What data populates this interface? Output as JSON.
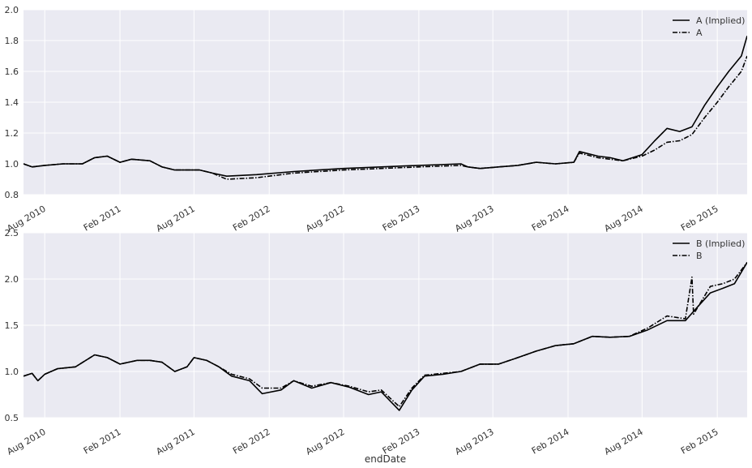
{
  "chart_data": [
    {
      "type": "line",
      "panel": "top",
      "xlim": [
        "2010-06-10",
        "2015-04-15"
      ],
      "ylim": [
        0.8,
        2.0
      ],
      "y_ticks": [
        "0.8",
        "1.0",
        "1.2",
        "1.4",
        "1.6",
        "1.8",
        "2.0"
      ],
      "x_ticks": [
        "Aug 2010",
        "Feb 2011",
        "Aug 2011",
        "Feb 2012",
        "Aug 2012",
        "Feb 2013",
        "Aug 2013",
        "Feb 2014",
        "Aug 2014",
        "Feb 2015"
      ],
      "grid": true,
      "legend_position": "top-right",
      "series": [
        {
          "name": "A (Implied)",
          "style": "solid",
          "color": "#000000",
          "points": [
            [
              "2010-06-10",
              1.0
            ],
            [
              "2010-07-01",
              0.98
            ],
            [
              "2010-08-01",
              0.99
            ],
            [
              "2010-09-15",
              1.0
            ],
            [
              "2010-11-01",
              1.0
            ],
            [
              "2010-12-01",
              1.04
            ],
            [
              "2011-01-01",
              1.05
            ],
            [
              "2011-02-01",
              1.01
            ],
            [
              "2011-03-01",
              1.03
            ],
            [
              "2011-04-15",
              1.02
            ],
            [
              "2011-05-15",
              0.98
            ],
            [
              "2011-06-15",
              0.96
            ],
            [
              "2011-08-15",
              0.96
            ],
            [
              "2011-09-15",
              0.94
            ],
            [
              "2011-10-20",
              0.92
            ],
            [
              "2012-01-01",
              0.93
            ],
            [
              "2012-04-01",
              0.95
            ],
            [
              "2012-08-01",
              0.97
            ],
            [
              "2012-11-01",
              0.98
            ],
            [
              "2013-02-01",
              0.99
            ],
            [
              "2013-05-15",
              1.0
            ],
            [
              "2013-06-01",
              0.98
            ],
            [
              "2013-07-01",
              0.97
            ],
            [
              "2013-08-15",
              0.98
            ],
            [
              "2013-10-01",
              0.99
            ],
            [
              "2013-11-15",
              1.01
            ],
            [
              "2014-01-01",
              1.0
            ],
            [
              "2014-02-15",
              1.01
            ],
            [
              "2014-03-01",
              1.08
            ],
            [
              "2014-04-15",
              1.05
            ],
            [
              "2014-05-15",
              1.04
            ],
            [
              "2014-06-15",
              1.02
            ],
            [
              "2014-08-01",
              1.06
            ],
            [
              "2014-09-01",
              1.15
            ],
            [
              "2014-10-01",
              1.23
            ],
            [
              "2014-11-01",
              1.21
            ],
            [
              "2014-12-01",
              1.24
            ],
            [
              "2015-01-01",
              1.38
            ],
            [
              "2015-02-01",
              1.5
            ],
            [
              "2015-03-01",
              1.6
            ],
            [
              "2015-04-01",
              1.7
            ],
            [
              "2015-04-15",
              1.83
            ]
          ]
        },
        {
          "name": "A",
          "style": "dashdot",
          "color": "#000000",
          "points": [
            [
              "2010-06-10",
              1.0
            ],
            [
              "2010-07-01",
              0.98
            ],
            [
              "2010-08-01",
              0.99
            ],
            [
              "2010-09-15",
              1.0
            ],
            [
              "2010-11-01",
              1.0
            ],
            [
              "2010-12-01",
              1.04
            ],
            [
              "2011-01-01",
              1.05
            ],
            [
              "2011-02-01",
              1.01
            ],
            [
              "2011-03-01",
              1.03
            ],
            [
              "2011-04-15",
              1.02
            ],
            [
              "2011-05-15",
              0.98
            ],
            [
              "2011-06-15",
              0.96
            ],
            [
              "2011-08-15",
              0.96
            ],
            [
              "2011-09-15",
              0.94
            ],
            [
              "2011-10-20",
              0.9
            ],
            [
              "2012-01-01",
              0.91
            ],
            [
              "2012-04-01",
              0.94
            ],
            [
              "2012-08-01",
              0.96
            ],
            [
              "2012-11-01",
              0.97
            ],
            [
              "2013-02-01",
              0.98
            ],
            [
              "2013-05-15",
              0.99
            ],
            [
              "2013-06-01",
              0.98
            ],
            [
              "2013-07-01",
              0.97
            ],
            [
              "2013-08-15",
              0.98
            ],
            [
              "2013-10-01",
              0.99
            ],
            [
              "2013-11-15",
              1.01
            ],
            [
              "2014-01-01",
              1.0
            ],
            [
              "2014-02-15",
              1.01
            ],
            [
              "2014-03-01",
              1.07
            ],
            [
              "2014-04-15",
              1.04
            ],
            [
              "2014-05-15",
              1.03
            ],
            [
              "2014-06-15",
              1.02
            ],
            [
              "2014-08-01",
              1.05
            ],
            [
              "2014-09-01",
              1.09
            ],
            [
              "2014-10-01",
              1.14
            ],
            [
              "2014-11-01",
              1.15
            ],
            [
              "2014-12-01",
              1.19
            ],
            [
              "2015-01-01",
              1.3
            ],
            [
              "2015-02-01",
              1.4
            ],
            [
              "2015-03-01",
              1.5
            ],
            [
              "2015-04-01",
              1.6
            ],
            [
              "2015-04-15",
              1.7
            ]
          ]
        }
      ]
    },
    {
      "type": "line",
      "panel": "bottom",
      "xlabel": "endDate",
      "xlim": [
        "2010-06-10",
        "2015-04-15"
      ],
      "ylim": [
        0.5,
        2.5
      ],
      "y_ticks": [
        "0.5",
        "1.0",
        "1.5",
        "2.0",
        "2.5"
      ],
      "x_ticks": [
        "Aug 2010",
        "Feb 2011",
        "Aug 2011",
        "Feb 2012",
        "Aug 2012",
        "Feb 2013",
        "Aug 2013",
        "Feb 2014",
        "Aug 2014",
        "Feb 2015"
      ],
      "grid": true,
      "legend_position": "top-right",
      "series": [
        {
          "name": "B (Implied)",
          "style": "solid",
          "color": "#000000",
          "points": [
            [
              "2010-06-10",
              0.95
            ],
            [
              "2010-07-01",
              0.98
            ],
            [
              "2010-07-15",
              0.9
            ],
            [
              "2010-08-01",
              0.97
            ],
            [
              "2010-09-01",
              1.03
            ],
            [
              "2010-10-15",
              1.05
            ],
            [
              "2010-12-01",
              1.18
            ],
            [
              "2011-01-01",
              1.15
            ],
            [
              "2011-02-01",
              1.08
            ],
            [
              "2011-03-15",
              1.12
            ],
            [
              "2011-04-15",
              1.12
            ],
            [
              "2011-05-15",
              1.1
            ],
            [
              "2011-06-15",
              1.0
            ],
            [
              "2011-07-15",
              1.05
            ],
            [
              "2011-08-01",
              1.15
            ],
            [
              "2011-09-01",
              1.12
            ],
            [
              "2011-10-01",
              1.05
            ],
            [
              "2011-11-01",
              0.95
            ],
            [
              "2011-12-15",
              0.9
            ],
            [
              "2012-01-15",
              0.76
            ],
            [
              "2012-03-01",
              0.8
            ],
            [
              "2012-04-01",
              0.9
            ],
            [
              "2012-05-15",
              0.82
            ],
            [
              "2012-07-01",
              0.88
            ],
            [
              "2012-08-15",
              0.83
            ],
            [
              "2012-10-01",
              0.75
            ],
            [
              "2012-11-01",
              0.78
            ],
            [
              "2012-12-15",
              0.58
            ],
            [
              "2013-01-15",
              0.8
            ],
            [
              "2013-02-15",
              0.95
            ],
            [
              "2013-04-01",
              0.97
            ],
            [
              "2013-05-15",
              1.0
            ],
            [
              "2013-07-01",
              1.08
            ],
            [
              "2013-08-15",
              1.08
            ],
            [
              "2013-10-01",
              1.15
            ],
            [
              "2013-11-15",
              1.22
            ],
            [
              "2014-01-01",
              1.28
            ],
            [
              "2014-02-15",
              1.3
            ],
            [
              "2014-04-01",
              1.38
            ],
            [
              "2014-05-15",
              1.37
            ],
            [
              "2014-07-01",
              1.38
            ],
            [
              "2014-08-15",
              1.45
            ],
            [
              "2014-10-01",
              1.55
            ],
            [
              "2014-11-15",
              1.55
            ],
            [
              "2014-12-15",
              1.7
            ],
            [
              "2015-01-15",
              1.85
            ],
            [
              "2015-02-15",
              1.9
            ],
            [
              "2015-03-15",
              1.95
            ],
            [
              "2015-04-15",
              2.18
            ]
          ]
        },
        {
          "name": "B",
          "style": "dashdot",
          "color": "#000000",
          "points": [
            [
              "2010-06-10",
              0.95
            ],
            [
              "2010-07-01",
              0.98
            ],
            [
              "2010-07-15",
              0.9
            ],
            [
              "2010-08-01",
              0.97
            ],
            [
              "2010-09-01",
              1.03
            ],
            [
              "2010-10-15",
              1.05
            ],
            [
              "2010-12-01",
              1.18
            ],
            [
              "2011-01-01",
              1.15
            ],
            [
              "2011-02-01",
              1.08
            ],
            [
              "2011-03-15",
              1.12
            ],
            [
              "2011-04-15",
              1.12
            ],
            [
              "2011-05-15",
              1.1
            ],
            [
              "2011-06-15",
              1.0
            ],
            [
              "2011-07-15",
              1.05
            ],
            [
              "2011-08-01",
              1.15
            ],
            [
              "2011-09-01",
              1.12
            ],
            [
              "2011-10-01",
              1.05
            ],
            [
              "2011-11-01",
              0.97
            ],
            [
              "2011-12-15",
              0.92
            ],
            [
              "2012-01-15",
              0.82
            ],
            [
              "2012-03-01",
              0.82
            ],
            [
              "2012-04-01",
              0.9
            ],
            [
              "2012-05-15",
              0.84
            ],
            [
              "2012-07-01",
              0.88
            ],
            [
              "2012-08-15",
              0.84
            ],
            [
              "2012-10-01",
              0.78
            ],
            [
              "2012-11-01",
              0.8
            ],
            [
              "2012-12-15",
              0.62
            ],
            [
              "2013-01-15",
              0.82
            ],
            [
              "2013-02-15",
              0.96
            ],
            [
              "2013-04-01",
              0.98
            ],
            [
              "2013-05-15",
              1.0
            ],
            [
              "2013-07-01",
              1.08
            ],
            [
              "2013-08-15",
              1.08
            ],
            [
              "2013-10-01",
              1.15
            ],
            [
              "2013-11-15",
              1.22
            ],
            [
              "2014-01-01",
              1.28
            ],
            [
              "2014-02-15",
              1.3
            ],
            [
              "2014-04-01",
              1.38
            ],
            [
              "2014-05-15",
              1.37
            ],
            [
              "2014-07-01",
              1.38
            ],
            [
              "2014-08-15",
              1.47
            ],
            [
              "2014-10-01",
              1.6
            ],
            [
              "2014-11-15",
              1.57
            ],
            [
              "2014-12-01",
              2.02
            ],
            [
              "2014-12-05",
              1.62
            ],
            [
              "2015-01-15",
              1.92
            ],
            [
              "2015-02-15",
              1.95
            ],
            [
              "2015-03-15",
              2.0
            ],
            [
              "2015-04-15",
              2.18
            ]
          ]
        }
      ]
    }
  ]
}
